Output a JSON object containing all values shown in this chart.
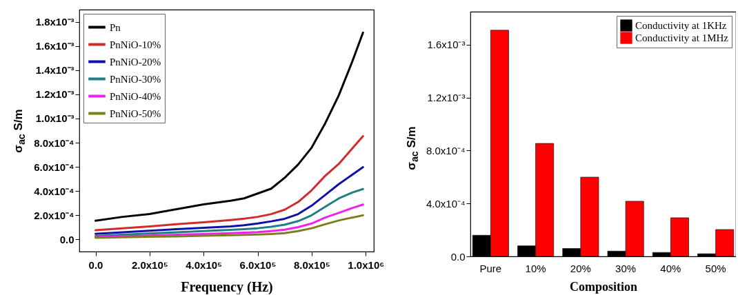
{
  "chart_data": [
    {
      "type": "line",
      "xlabel": "Frequency (Hz)",
      "ylabel": "σ$_{ac}$ S/m",
      "x": [
        0,
        100000,
        200000,
        300000,
        400000,
        500000,
        550000,
        600000,
        650000,
        700000,
        750000,
        800000,
        850000,
        900000,
        950000,
        990000
      ],
      "series": [
        {
          "name": "Pn",
          "color": "#000000",
          "values": [
            0.000155,
            0.000187,
            0.00021,
            0.00025,
            0.00029,
            0.00032,
            0.00034,
            0.00038,
            0.00042,
            0.00051,
            0.00062,
            0.00076,
            0.00096,
            0.00119,
            0.00147,
            0.00171
          ]
        },
        {
          "name": "PnNiO-10%",
          "color": "#d42a2a",
          "values": [
            7.7e-05,
            9.3e-05,
            0.000108,
            0.000126,
            0.000142,
            0.000161,
            0.000172,
            0.000187,
            0.00021,
            0.000246,
            0.00031,
            0.000407,
            0.000526,
            0.000624,
            0.000752,
            0.000854
          ]
        },
        {
          "name": "PnNiO-20%",
          "color": "#1010a8",
          "values": [
            4.7e-05,
            6e-05,
            7.3e-05,
            8.5e-05,
            9.6e-05,
            0.000108,
            0.000118,
            0.000132,
            0.00015,
            0.000171,
            0.00021,
            0.00028,
            0.000368,
            0.000457,
            0.000535,
            0.000598
          ]
        },
        {
          "name": "PnNiO-30%",
          "color": "#1e8080",
          "values": [
            2.8e-05,
            3.9e-05,
            4.9e-05,
            5.9e-05,
            6.9e-05,
            7.9e-05,
            8.5e-05,
            9.3e-05,
            0.000105,
            0.000122,
            0.000152,
            0.0002,
            0.00027,
            0.000339,
            0.000388,
            0.000417
          ]
        },
        {
          "name": "PnNiO-40%",
          "color": "#ee22ee",
          "values": [
            2e-05,
            2.7e-05,
            3.3e-05,
            3.9e-05,
            4.5e-05,
            5.2e-05,
            5.6e-05,
            6.1e-05,
            7e-05,
            8.1e-05,
            0.000102,
            0.000132,
            0.000181,
            0.00022,
            0.00026,
            0.000289
          ]
        },
        {
          "name": "PnNiO-50%",
          "color": "#7f7f1a",
          "values": [
            1.4e-05,
            1.8e-05,
            2.2e-05,
            2.6e-05,
            3.1e-05,
            3.6e-05,
            3.8e-05,
            4.1e-05,
            4.6e-05,
            5.3e-05,
            6.9e-05,
            9.3e-05,
            0.000126,
            0.000157,
            0.000181,
            0.0002
          ]
        }
      ],
      "xlim": [
        -60000,
        1030000
      ],
      "ylim": [
        -0.0001,
        0.0019
      ],
      "xticks": [
        {
          "value": 0,
          "label": "0.0"
        },
        {
          "value": 200000,
          "label": "2.0x10⁵"
        },
        {
          "value": 400000,
          "label": "4.0x10⁵"
        },
        {
          "value": 600000,
          "label": "6.0x10⁵"
        },
        {
          "value": 800000,
          "label": "8.0x10⁵"
        },
        {
          "value": 1000000,
          "label": "1.0x10⁶"
        }
      ],
      "yticks": [
        {
          "value": 0,
          "label": "0.0"
        },
        {
          "value": 0.0002,
          "label": "2.0x10⁻⁴"
        },
        {
          "value": 0.0004,
          "label": "4.0x10⁻⁴"
        },
        {
          "value": 0.0006,
          "label": "6.0x10⁻⁴"
        },
        {
          "value": 0.0008,
          "label": "8.0x10⁻⁴"
        },
        {
          "value": 0.001,
          "label": "1.0x10⁻³"
        },
        {
          "value": 0.0012,
          "label": "1.2x10⁻³"
        },
        {
          "value": 0.0014,
          "label": "1.4x10⁻³"
        },
        {
          "value": 0.0016,
          "label": "1.6x10⁻³"
        },
        {
          "value": 0.0018,
          "label": "1.8x10⁻³"
        }
      ],
      "legend": "top left",
      "marker": "none",
      "line_style": "solid"
    },
    {
      "type": "bar",
      "xlabel": "Composition",
      "ylabel": "σ$_{ac}$ S/m",
      "categories": [
        "Pure",
        "10%",
        "20%",
        "30%",
        "40%",
        "50%"
      ],
      "series": [
        {
          "name": "Conductivity at 1KHz",
          "color": "#000000",
          "values": [
            0.00016,
            8e-05,
            6e-05,
            4e-05,
            3e-05,
            2e-05
          ]
        },
        {
          "name": "Conductivity at 1MHz",
          "color": "#ff0000",
          "values": [
            0.00171,
            0.000854,
            0.000599,
            0.000417,
            0.000292,
            0.000203
          ]
        }
      ],
      "ylim": [
        0,
        0.00185
      ],
      "yticks": [
        {
          "value": 0,
          "label": "0.0"
        },
        {
          "value": 0.0004,
          "label": "4.0x10⁻⁴"
        },
        {
          "value": 0.0008,
          "label": "8.0x10⁻⁴"
        },
        {
          "value": 0.0012,
          "label": "1.2x10⁻³"
        },
        {
          "value": 0.0016,
          "label": "1.6x10⁻³"
        }
      ],
      "legend": "top right"
    }
  ]
}
